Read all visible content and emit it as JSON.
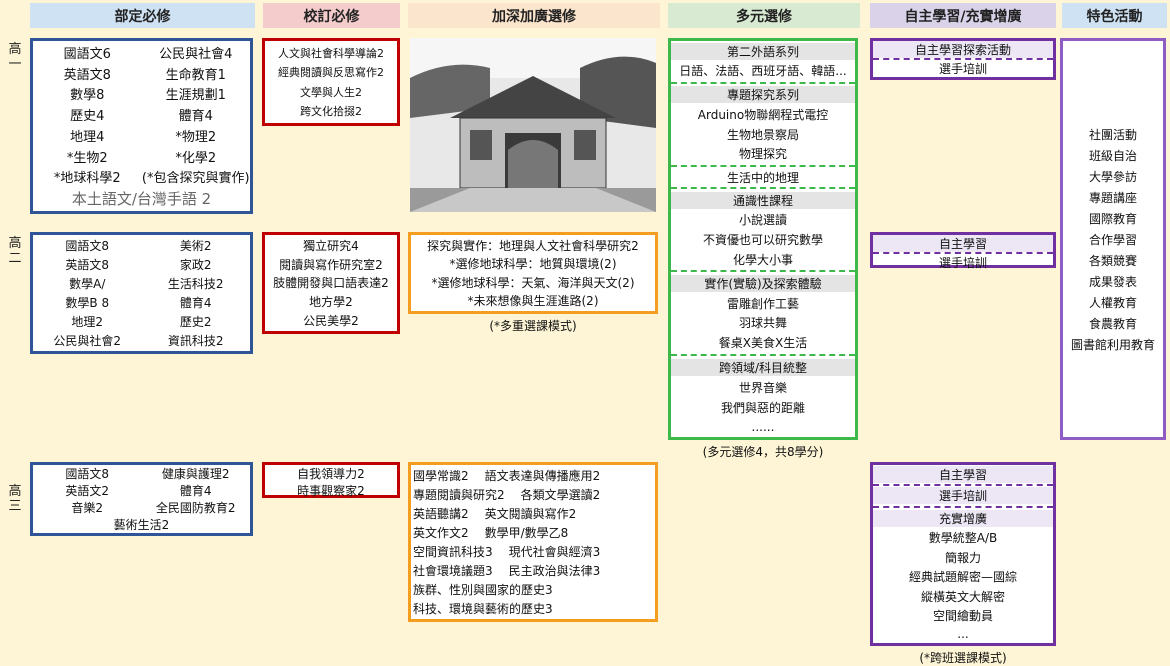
{
  "columns": [
    "部定必修",
    "校訂必修",
    "加深加廣選修",
    "多元選修",
    "自主學習/充實增廣",
    "特色活動"
  ],
  "grades": [
    "高一",
    "高二",
    "高三"
  ],
  "grade_1": {
    "required": {
      "rows": [
        [
          "國語文6",
          "公民與社會4"
        ],
        [
          "英語文8",
          "生命教育1"
        ],
        [
          "數學8",
          "生涯規劃1"
        ],
        [
          "歷史4",
          "體育4"
        ],
        [
          "地理4",
          "*物理2"
        ],
        [
          "*生物2",
          "*化學2"
        ],
        [
          "*地球科學2",
          "(*包含探究與實作)"
        ]
      ],
      "footer": "本土語文/台灣手語 2"
    },
    "school": {
      "items": [
        "人文與社會科學導論2",
        "經典閱讀與反思寫作2",
        "文學與人生2",
        "跨文化拾掇2"
      ]
    },
    "multi": {
      "sections": [
        {
          "title": "第二外語系列",
          "items": [
            "日語、法語、西班牙語、韓語..."
          ]
        },
        {
          "title": "專題探究系列",
          "items": [
            "Arduino物聯網程式電控",
            "生物地景察局",
            "物理探究"
          ]
        },
        {
          "items": [
            "生活中的地理"
          ]
        },
        {
          "title": "通識性課程",
          "items": [
            "小說選讀",
            "不資優也可以研究數學",
            "化學大小事"
          ]
        },
        {
          "title": "實作(實驗)及探索體驗",
          "items": [
            "雷雕創作工藝",
            "羽球共舞",
            "餐桌X美食X生活"
          ]
        },
        {
          "title": "跨領域/科目統整",
          "items": [
            "世界音樂",
            "我們與惡的距離",
            "......"
          ]
        }
      ],
      "note": "(多元選修4，共8學分)"
    },
    "self": {
      "sections": [
        {
          "title": "自主學習探索活動"
        },
        {
          "items": [
            "選手培訓"
          ]
        }
      ]
    },
    "activities": {
      "items": [
        "社團活動",
        "班級自治",
        "大學參訪",
        "專題講座",
        "國際教育",
        "合作學習",
        "各類競賽",
        "成果發表",
        "人權教育",
        "食農教育",
        "圖書館利用教育"
      ]
    }
  },
  "grade_2": {
    "required": {
      "rows": [
        [
          "國語文8",
          "美術2"
        ],
        [
          "英語文8",
          "家政2"
        ],
        [
          "數學A/",
          "生活科技2"
        ],
        [
          "數學B 8",
          "體育4"
        ],
        [
          "地理2",
          "歷史2"
        ],
        [
          "公民與社會2",
          "資訊科技2"
        ]
      ]
    },
    "school": {
      "items": [
        "獨立研究4",
        "閱讀與寫作研究室2",
        "肢體開發與口語表達2",
        "地方學2",
        "公民美學2"
      ]
    },
    "advanced": {
      "items": [
        "探究與實作：地理與人文社會科學研究2",
        "*選修地球科學：地質與環境(2)",
        "*選修地球科學：天氣、海洋與天文(2)",
        "*未來想像與生涯進路(2)"
      ],
      "note": "(*多重選課模式)"
    },
    "self": {
      "sections": [
        {
          "title": "自主學習"
        },
        {
          "items": [
            "選手培訓"
          ]
        }
      ]
    }
  },
  "grade_3": {
    "required": {
      "rows": [
        [
          "國語文8",
          "健康與護理2"
        ],
        [
          "英語文2",
          "體育4"
        ],
        [
          "音樂2",
          "全民國防教育2"
        ],
        [
          "藝術生活2"
        ]
      ]
    },
    "school": {
      "items": [
        "自我領導力2",
        "時事觀察家2"
      ]
    },
    "advanced": {
      "rows": [
        [
          "國學常識2",
          "語文表達與傳播應用2"
        ],
        [
          "專題閱讀與研究2",
          "各類文學選讀2"
        ],
        [
          "英語聽講2",
          "英文閱讀與寫作2"
        ],
        [
          "英文作文2",
          "數學甲/數學乙8"
        ],
        [
          "空間資訊科技3",
          "現代社會與經濟3"
        ],
        [
          "社會環境議題3",
          "民主政治與法律3"
        ],
        [
          "族群、性別與國家的歷史3"
        ],
        [
          "科技、環境與藝術的歷史3"
        ]
      ]
    },
    "self": {
      "sections": [
        {
          "title": "自主學習"
        },
        {
          "title": "選手培訓"
        },
        {
          "title": "充實增廣",
          "items": [
            "數學統整A/B",
            "簡報力",
            "經典試題解密—國綜",
            "縱橫英文大解密",
            "空間繪動員",
            "..."
          ]
        }
      ],
      "note": "(*跨班選課模式)"
    }
  }
}
